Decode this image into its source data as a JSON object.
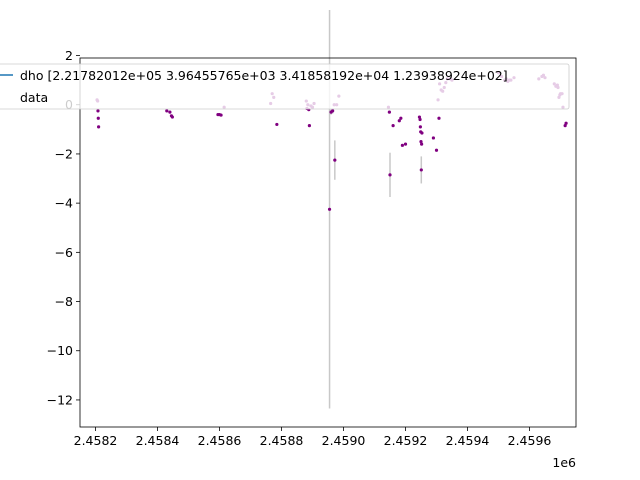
{
  "chart_data": {
    "type": "scatter",
    "x_offset_label": "1e6",
    "xlim": [
      2.45815,
      2.45975
    ],
    "ylim": [
      -13.1,
      1.9
    ],
    "x_ticks": [
      2.4582,
      2.4584,
      2.4586,
      2.4588,
      2.459,
      2.4592,
      2.4594,
      2.4596
    ],
    "x_tick_labels": [
      "2.4582",
      "2.4584",
      "2.4586",
      "2.4588",
      "2.4590",
      "2.4592",
      "2.4594",
      "2.4596"
    ],
    "y_ticks": [
      -12,
      -10,
      -8,
      -6,
      -4,
      -2,
      0,
      2
    ],
    "y_tick_labels": [
      "−12",
      "−10",
      "−8",
      "−6",
      "−4",
      "−2",
      "0",
      "2"
    ],
    "grid": false,
    "legend_position": "top-left",
    "colors": {
      "data": "#800080",
      "errorbar": "#c8c8c8",
      "model_line": "#1f77b4",
      "axes": "#000000"
    },
    "series": [
      {
        "name": "dho [2.21782012e+05 3.96455765e+03 3.41858192e+04 1.23938924e+02]",
        "kind": "line",
        "points": []
      },
      {
        "name": "data",
        "kind": "errorbar",
        "points": [
          {
            "x": 2.458205,
            "y": 0.2,
            "err": 0.05
          },
          {
            "x": 2.458207,
            "y": 0.15,
            "err": 0.05
          },
          {
            "x": 2.458208,
            "y": -0.25,
            "err": 0.05
          },
          {
            "x": 2.458209,
            "y": -0.55,
            "err": 0.05
          },
          {
            "x": 2.45821,
            "y": -0.9,
            "err": 0.05
          },
          {
            "x": 2.45843,
            "y": -0.25,
            "err": 0.05
          },
          {
            "x": 2.45844,
            "y": -0.3,
            "err": 0.05
          },
          {
            "x": 2.458445,
            "y": -0.45,
            "err": 0.05
          },
          {
            "x": 2.458448,
            "y": -0.5,
            "err": 0.05
          },
          {
            "x": 2.458595,
            "y": -0.4,
            "err": 0.05
          },
          {
            "x": 2.4586,
            "y": -0.4,
            "err": 0.05
          },
          {
            "x": 2.458605,
            "y": -0.42,
            "err": 0.05
          },
          {
            "x": 2.458615,
            "y": -0.1,
            "err": 0.05
          },
          {
            "x": 2.458765,
            "y": 0.05,
            "err": 0.05
          },
          {
            "x": 2.45877,
            "y": 0.45,
            "err": 0.05
          },
          {
            "x": 2.458775,
            "y": 0.3,
            "err": 0.05
          },
          {
            "x": 2.458785,
            "y": -0.8,
            "err": 0.05
          },
          {
            "x": 2.45888,
            "y": 0.15,
            "err": 0.05
          },
          {
            "x": 2.458882,
            "y": -0.15,
            "err": 0.05
          },
          {
            "x": 2.458885,
            "y": 0.0,
            "err": 0.05
          },
          {
            "x": 2.458888,
            "y": -0.2,
            "err": 0.05
          },
          {
            "x": 2.45889,
            "y": -0.85,
            "err": 0.05
          },
          {
            "x": 2.458895,
            "y": -0.05,
            "err": 0.05
          },
          {
            "x": 2.4589,
            "y": -0.1,
            "err": 0.05
          },
          {
            "x": 2.458905,
            "y": 0.05,
            "err": 0.05
          },
          {
            "x": 2.458955,
            "y": -4.25,
            "err": 8.1
          },
          {
            "x": 2.45896,
            "y": -0.3,
            "err": 0.1
          },
          {
            "x": 2.458965,
            "y": -0.25,
            "err": 0.1
          },
          {
            "x": 2.45897,
            "y": 0.0,
            "err": 0.05
          },
          {
            "x": 2.458972,
            "y": -2.25,
            "err": 0.8
          },
          {
            "x": 2.458978,
            "y": 0.0,
            "err": 0.05
          },
          {
            "x": 2.458985,
            "y": 0.35,
            "err": 0.05
          },
          {
            "x": 2.459145,
            "y": -0.1,
            "err": 0.05
          },
          {
            "x": 2.459148,
            "y": -0.3,
            "err": 0.05
          },
          {
            "x": 2.45915,
            "y": -2.85,
            "err": 0.9
          },
          {
            "x": 2.45916,
            "y": -0.85,
            "err": 0.05
          },
          {
            "x": 2.45918,
            "y": -0.65,
            "err": 0.05
          },
          {
            "x": 2.459185,
            "y": -0.55,
            "err": 0.05
          },
          {
            "x": 2.45919,
            "y": -1.65,
            "err": 0.05
          },
          {
            "x": 2.4592,
            "y": -1.6,
            "err": 0.05
          },
          {
            "x": 2.459245,
            "y": -0.5,
            "err": 0.05
          },
          {
            "x": 2.459247,
            "y": -0.6,
            "err": 0.05
          },
          {
            "x": 2.459248,
            "y": -0.9,
            "err": 0.05
          },
          {
            "x": 2.459249,
            "y": -1.1,
            "err": 0.05
          },
          {
            "x": 2.45925,
            "y": -1.5,
            "err": 0.05
          },
          {
            "x": 2.459251,
            "y": -2.65,
            "err": 0.55
          },
          {
            "x": 2.459252,
            "y": -1.6,
            "err": 0.05
          },
          {
            "x": 2.459253,
            "y": -1.15,
            "err": 0.05
          },
          {
            "x": 2.45929,
            "y": -1.35,
            "err": 0.05
          },
          {
            "x": 2.4593,
            "y": -1.85,
            "err": 0.05
          },
          {
            "x": 2.459305,
            "y": 0.2,
            "err": 0.05
          },
          {
            "x": 2.459308,
            "y": -0.55,
            "err": 0.05
          },
          {
            "x": 2.45931,
            "y": 0.85,
            "err": 0.05
          },
          {
            "x": 2.459315,
            "y": 0.6,
            "err": 0.05
          },
          {
            "x": 2.45932,
            "y": 0.55,
            "err": 0.05
          },
          {
            "x": 2.459325,
            "y": 0.7,
            "err": 0.05
          },
          {
            "x": 2.45933,
            "y": 0.9,
            "err": 0.05
          },
          {
            "x": 2.459335,
            "y": 1.05,
            "err": 0.05
          },
          {
            "x": 2.459345,
            "y": 1.05,
            "err": 0.05
          },
          {
            "x": 2.45935,
            "y": 1.0,
            "err": 0.05
          },
          {
            "x": 2.4595,
            "y": 1.3,
            "err": 0.05
          },
          {
            "x": 2.45951,
            "y": 1.15,
            "err": 0.05
          },
          {
            "x": 2.45952,
            "y": 1.0,
            "err": 0.05
          },
          {
            "x": 2.459525,
            "y": 1.05,
            "err": 0.05
          },
          {
            "x": 2.45953,
            "y": 0.95,
            "err": 0.05
          },
          {
            "x": 2.459535,
            "y": 1.0,
            "err": 0.05
          },
          {
            "x": 2.45954,
            "y": 1.0,
            "err": 0.05
          },
          {
            "x": 2.45955,
            "y": 1.1,
            "err": 0.05
          },
          {
            "x": 2.45963,
            "y": 1.05,
            "err": 0.05
          },
          {
            "x": 2.45964,
            "y": 1.15,
            "err": 0.05
          },
          {
            "x": 2.459645,
            "y": 1.2,
            "err": 0.05
          },
          {
            "x": 2.45965,
            "y": 1.1,
            "err": 0.05
          },
          {
            "x": 2.45968,
            "y": 0.85,
            "err": 0.05
          },
          {
            "x": 2.459685,
            "y": 0.75,
            "err": 0.05
          },
          {
            "x": 2.45969,
            "y": 0.8,
            "err": 0.05
          },
          {
            "x": 2.459692,
            "y": 0.7,
            "err": 0.05
          },
          {
            "x": 2.459695,
            "y": 0.3,
            "err": 0.05
          },
          {
            "x": 2.459698,
            "y": 0.4,
            "err": 0.05
          },
          {
            "x": 2.4597,
            "y": 0.45,
            "err": 0.05
          },
          {
            "x": 2.459705,
            "y": 0.45,
            "err": 0.05
          },
          {
            "x": 2.459708,
            "y": -0.1,
            "err": 0.05
          },
          {
            "x": 2.459715,
            "y": -0.85,
            "err": 0.05
          },
          {
            "x": 2.459718,
            "y": -0.75,
            "err": 0.05
          }
        ]
      }
    ]
  }
}
